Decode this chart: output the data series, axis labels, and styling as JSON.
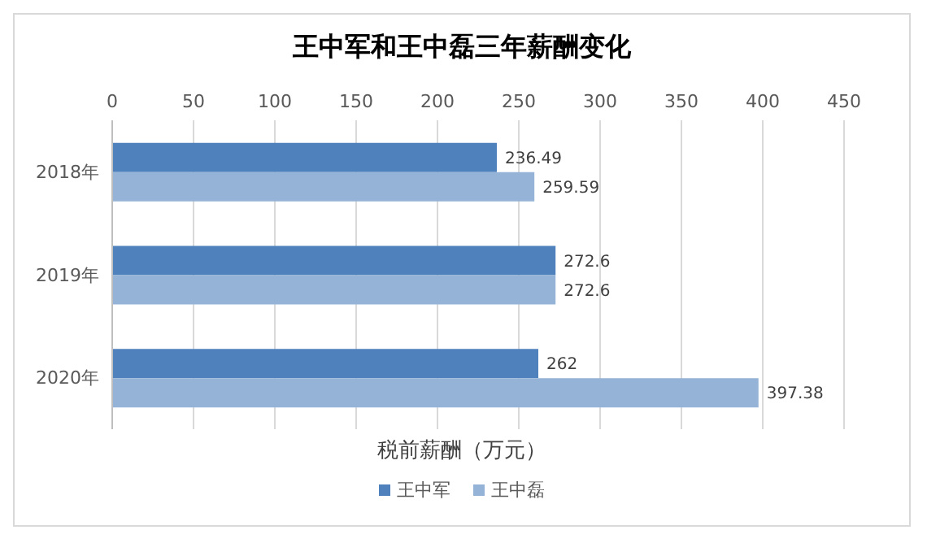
{
  "chart_data": {
    "type": "bar",
    "orientation": "horizontal",
    "title": "王中军和王中磊三年薪酬变化",
    "xlabel": "税前薪酬（万元）",
    "categories": [
      "2018年",
      "2019年",
      "2020年"
    ],
    "series": [
      {
        "name": "王中军",
        "color": "#4f81bd",
        "values": [
          236.49,
          272.6,
          262
        ]
      },
      {
        "name": "王中磊",
        "color": "#95b3d7",
        "values": [
          259.59,
          272.6,
          397.38
        ]
      }
    ],
    "xlim": [
      0,
      450
    ],
    "xticks": [
      0,
      50,
      100,
      150,
      200,
      250,
      300,
      350,
      400,
      450
    ],
    "grid": "x",
    "legend": "bottom",
    "data_labels": true
  }
}
